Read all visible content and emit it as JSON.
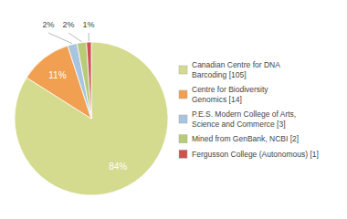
{
  "chart_data": {
    "type": "pie",
    "categories": [
      "Canadian Centre for DNA\nBarcoding [105]",
      "Centre for Biodiversity\nGenomics [14]",
      "P.E.S. Modern College of Arts,\nScience and Commerce [3]",
      "Mined from GenBank, NCBI [2]",
      "Fergusson College (Autonomous) [1]"
    ],
    "values": [
      84,
      11,
      2,
      2,
      1
    ],
    "value_labels": [
      "84%",
      "11%",
      "2%",
      "2%",
      "1%"
    ],
    "colors": [
      "#d4db8e",
      "#f0a050",
      "#a8c4df",
      "#b8cc78",
      "#d05050"
    ],
    "data_labels": true,
    "legend": "right"
  }
}
